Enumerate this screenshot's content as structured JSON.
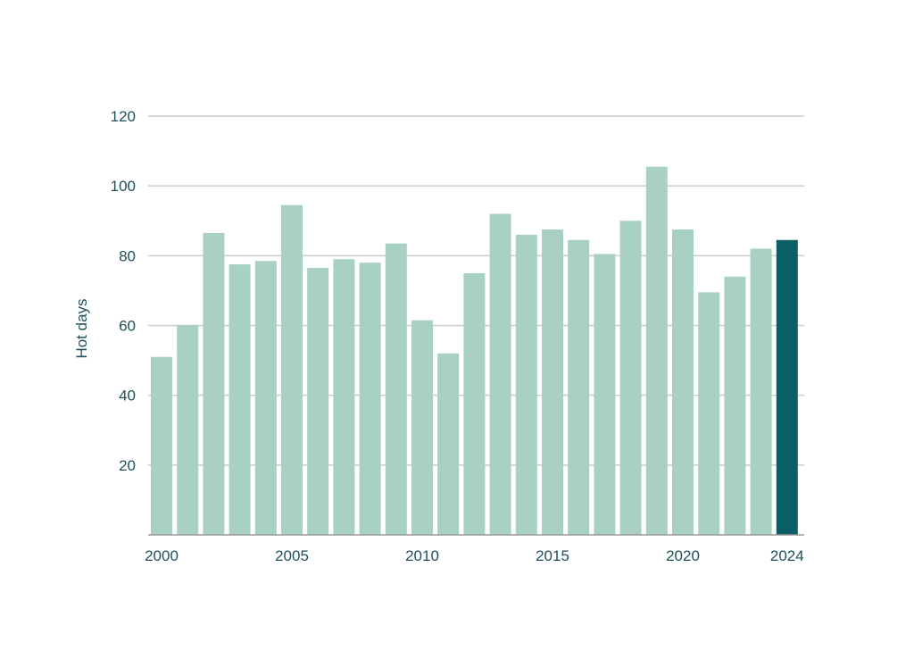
{
  "chart_data": {
    "type": "bar",
    "title": "",
    "xlabel": "",
    "ylabel": "Hot days",
    "ylim": [
      0,
      120
    ],
    "yticks": [
      20,
      40,
      60,
      80,
      100,
      120
    ],
    "xtick_labels": [
      "2000",
      "2005",
      "2010",
      "2015",
      "2020",
      "2024"
    ],
    "grid": true,
    "colors": {
      "default": "#a8d0c4",
      "highlight": "#0b5e66",
      "text": "#1f4f5a",
      "grid": "#cccccc"
    },
    "highlight_category": "2024",
    "categories": [
      "2000",
      "2001",
      "2002",
      "2003",
      "2004",
      "2005",
      "2006",
      "2007",
      "2008",
      "2009",
      "2010",
      "2011",
      "2012",
      "2013",
      "2014",
      "2015",
      "2016",
      "2017",
      "2018",
      "2019",
      "2020",
      "2021",
      "2022",
      "2023",
      "2024"
    ],
    "values": [
      51,
      60,
      86.5,
      77.5,
      78.5,
      94.5,
      76.5,
      79,
      78,
      83.5,
      61.5,
      52,
      75,
      92,
      86,
      87.5,
      84.5,
      80.5,
      90,
      105.5,
      87.5,
      69.5,
      74,
      82,
      84.5
    ]
  }
}
